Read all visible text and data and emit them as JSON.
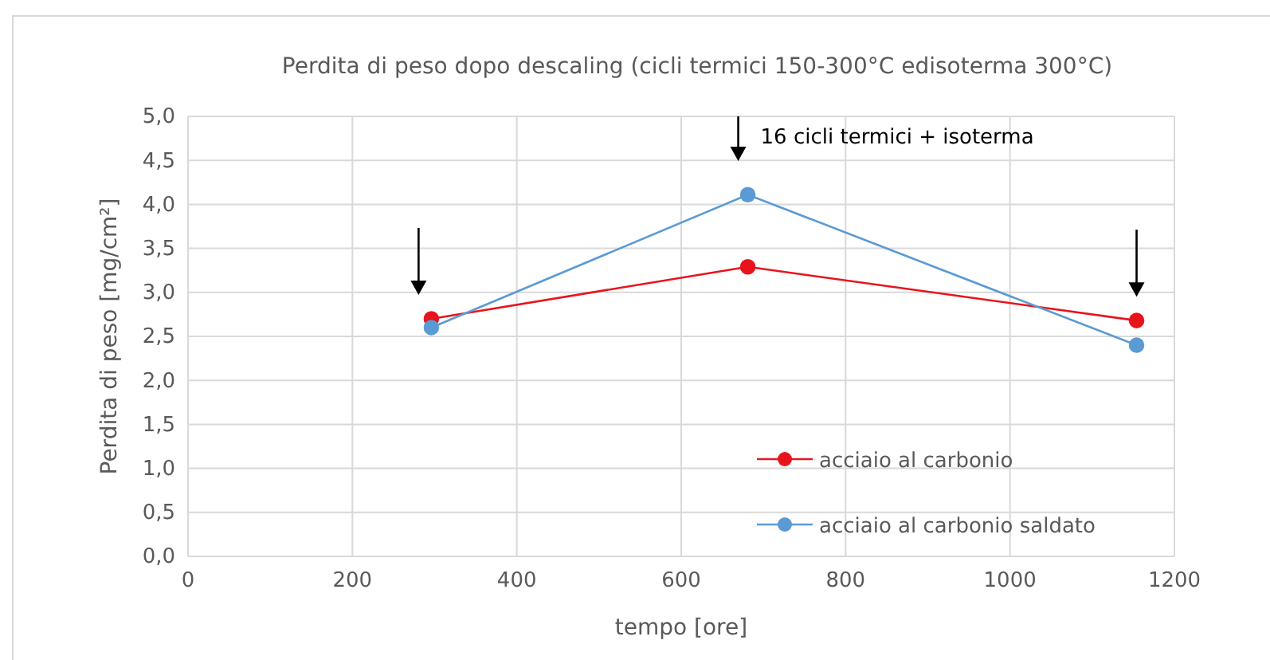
{
  "chart_data": {
    "type": "line",
    "title": "Perdita di peso dopo descaling (cicli termici 150-300°C edisoterma 300°C)",
    "xlabel": "tempo [ore]",
    "ylabel": "Perdita di peso [mg/cm²]",
    "x": [
      296,
      681,
      1154
    ],
    "series": [
      {
        "name": "acciaio al carbonio",
        "color": "#e8141c",
        "values": [
          2.7,
          3.29,
          2.68
        ]
      },
      {
        "name": "acciaio al carbonio saldato",
        "color": "#5b9bd5",
        "values": [
          2.6,
          4.11,
          2.4
        ]
      }
    ],
    "xlim": [
      0,
      1200
    ],
    "xticks": [
      0,
      200,
      400,
      600,
      800,
      1000,
      1200
    ],
    "ylim": [
      0,
      5
    ],
    "yticks": [
      {
        "value": 0,
        "label": "0,0"
      },
      {
        "value": 0.5,
        "label": "0,5"
      },
      {
        "value": 1,
        "label": "1,0"
      },
      {
        "value": 1.5,
        "label": "1,5"
      },
      {
        "value": 2,
        "label": "2,0"
      },
      {
        "value": 2.5,
        "label": "2,5"
      },
      {
        "value": 3,
        "label": "3,0"
      },
      {
        "value": 3.5,
        "label": "3,5"
      },
      {
        "value": 4,
        "label": "4,0"
      },
      {
        "value": 4.5,
        "label": "4,5"
      },
      {
        "value": 5,
        "label": "5,0"
      }
    ],
    "annotations": [
      "16 cicli termici + isoterma"
    ],
    "grid": true,
    "legend": "bottom right",
    "marker": "circle",
    "line_style": "solid"
  }
}
